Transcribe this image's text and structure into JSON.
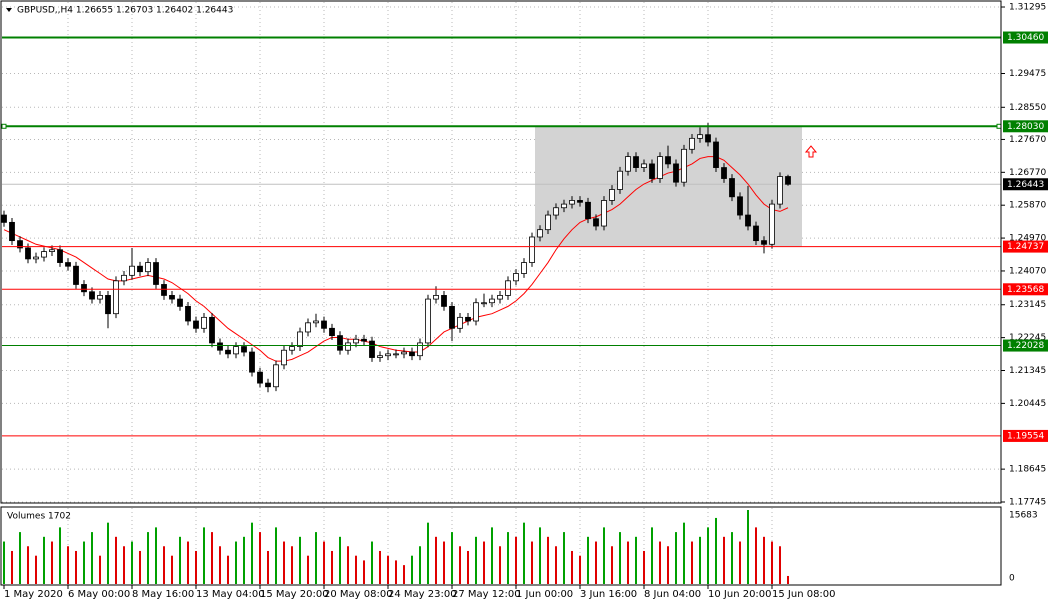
{
  "chart_data": {
    "type": "candlestick",
    "title": "GBPUSD,,H4  1.26655 1.26703 1.26402 1.26443",
    "ylim": [
      1.17718,
      1.31487
    ],
    "yticks": [
      1.31295,
      1.29475,
      {
        "value": 1.2855,
        "label": "1.28550"
      },
      {
        "value": 1.2767,
        "label": "1.27670"
      },
      {
        "value": 1.2677,
        "label": "1.26770"
      },
      {
        "value": 1.2587,
        "label": "1.25870"
      },
      {
        "value": 1.2497,
        "label": "1.24970"
      },
      {
        "value": 1.2407,
        "label": "1.24070"
      },
      1.23145,
      1.22245,
      1.21345,
      1.20445,
      1.18645,
      1.17745
    ],
    "current": 1.26443,
    "zone": {
      "high": 1.2803,
      "low": 1.24737
    },
    "levels": [
      {
        "value": 1.3046,
        "label": "1.30460",
        "color": "#008000"
      },
      {
        "value": 1.2803,
        "label": "1.28030",
        "color": "#008000"
      },
      {
        "value": 1.24737,
        "label": "1.24737",
        "color": "#ff0000"
      },
      {
        "value": 1.23568,
        "label": "1.23568",
        "color": "#ff0000"
      },
      {
        "value": 1.22028,
        "label": "1.22028",
        "color": "#008000"
      },
      {
        "value": 1.19554,
        "label": "1.19554",
        "color": "#ff0000"
      }
    ],
    "x_labels": [
      "1 May 2020",
      "6 May 00:00",
      "8 May 16:00",
      "13 May 04:00",
      "15 May 20:00",
      "20 May 08:00",
      "24 May 23:00",
      "27 May 12:00",
      "1 Jun 00:00",
      "3 Jun 16:00",
      "8 Jun 04:00",
      "10 Jun 20:00",
      "15 Jun 08:00"
    ],
    "open": [
      1.256,
      1.254,
      1.249,
      1.247,
      1.244,
      1.2445,
      1.246,
      1.2465,
      1.243,
      1.242,
      1.237,
      1.235,
      1.233,
      1.234,
      1.229,
      1.238,
      1.2395,
      1.242,
      1.2405,
      1.243,
      1.237,
      1.234,
      1.233,
      1.231,
      1.227,
      1.225,
      1.228,
      1.221,
      1.219,
      1.218,
      1.22,
      1.2185,
      1.213,
      1.21,
      1.209,
      1.215,
      1.219,
      1.22,
      1.224,
      1.2265,
      1.227,
      1.225,
      1.223,
      1.219,
      1.221,
      1.222,
      1.2215,
      1.217,
      1.2175,
      1.218,
      1.218,
      1.2185,
      1.2175,
      1.221,
      1.233,
      1.234,
      1.231,
      1.225,
      1.228,
      1.227,
      1.232,
      1.232,
      1.233,
      1.234,
      1.238,
      1.24,
      1.243,
      1.25,
      1.252,
      1.256,
      1.258,
      1.259,
      1.26,
      1.2595,
      1.255,
      1.253,
      1.26,
      1.263,
      1.268,
      1.272,
      1.269,
      1.27,
      1.266,
      1.272,
      1.27,
      1.265,
      1.274,
      1.277,
      1.278,
      1.276,
      1.269,
      1.266,
      1.261,
      1.256,
      1.253,
      1.249,
      1.248,
      1.259,
      1.26655
    ],
    "high": [
      1.2572,
      1.2552,
      1.2502,
      1.2482,
      1.2457,
      1.2472,
      1.2477,
      1.2477,
      1.2442,
      1.2432,
      1.2382,
      1.2362,
      1.2352,
      1.2352,
      1.2392,
      1.2407,
      1.247,
      1.2432,
      1.2442,
      1.2442,
      1.2382,
      1.2352,
      1.2342,
      1.2322,
      1.2282,
      1.2292,
      1.2292,
      1.2222,
      1.2202,
      1.2212,
      1.2212,
      1.2197,
      1.2142,
      1.2112,
      1.2162,
      1.2202,
      1.2212,
      1.2252,
      1.2277,
      1.229,
      1.2282,
      1.2262,
      1.2242,
      1.2222,
      1.2232,
      1.2232,
      1.2227,
      1.2187,
      1.2192,
      1.2192,
      1.2197,
      1.2197,
      1.2222,
      1.2342,
      1.2365,
      1.2352,
      1.2322,
      1.2292,
      1.2292,
      1.2332,
      1.2345,
      1.2342,
      1.2352,
      1.2392,
      1.2412,
      1.2442,
      1.2512,
      1.2532,
      1.2572,
      1.2592,
      1.2602,
      1.2612,
      1.2612,
      1.2607,
      1.2562,
      1.2612,
      1.2642,
      1.2692,
      1.2732,
      1.2732,
      1.2712,
      1.2712,
      1.2732,
      1.275,
      1.2712,
      1.2752,
      1.2782,
      1.28,
      1.2812,
      1.2772,
      1.2702,
      1.2672,
      1.2622,
      1.264,
      1.2542,
      1.2502,
      1.2602,
      1.2677,
      1.26703
    ],
    "low": [
      1.2528,
      1.2478,
      1.2458,
      1.2428,
      1.2428,
      1.2433,
      1.2448,
      1.2418,
      1.2408,
      1.2358,
      1.2338,
      1.2318,
      1.2318,
      1.225,
      1.2278,
      1.2368,
      1.2383,
      1.2393,
      1.2393,
      1.2358,
      1.2328,
      1.2318,
      1.2298,
      1.2258,
      1.2238,
      1.2238,
      1.2198,
      1.2178,
      1.2168,
      1.2168,
      1.2173,
      1.2118,
      1.2088,
      1.2075,
      1.2078,
      1.2138,
      1.2178,
      1.2188,
      1.2228,
      1.2253,
      1.2238,
      1.2218,
      1.2178,
      1.2178,
      1.2198,
      1.2203,
      1.2158,
      1.2158,
      1.2163,
      1.2168,
      1.2168,
      1.2163,
      1.2163,
      1.2198,
      1.2318,
      1.2298,
      1.2215,
      1.2238,
      1.2258,
      1.2258,
      1.2308,
      1.2308,
      1.2318,
      1.2328,
      1.2368,
      1.2388,
      1.2418,
      1.2488,
      1.2508,
      1.2548,
      1.2568,
      1.2578,
      1.2583,
      1.2538,
      1.2518,
      1.2518,
      1.2588,
      1.2618,
      1.2668,
      1.2678,
      1.2678,
      1.2648,
      1.2648,
      1.2688,
      1.2638,
      1.2638,
      1.2728,
      1.2758,
      1.2748,
      1.2678,
      1.2648,
      1.2598,
      1.2548,
      1.2518,
      1.2478,
      1.2455,
      1.2468,
      1.2578,
      1.26402
    ],
    "close": [
      1.254,
      1.249,
      1.247,
      1.244,
      1.2445,
      1.246,
      1.2465,
      1.243,
      1.242,
      1.237,
      1.235,
      1.233,
      1.234,
      1.229,
      1.238,
      1.2395,
      1.242,
      1.2405,
      1.243,
      1.237,
      1.234,
      1.233,
      1.231,
      1.227,
      1.225,
      1.228,
      1.221,
      1.219,
      1.218,
      1.22,
      1.2185,
      1.213,
      1.21,
      1.209,
      1.215,
      1.219,
      1.22,
      1.224,
      1.2265,
      1.227,
      1.225,
      1.223,
      1.219,
      1.221,
      1.222,
      1.2215,
      1.217,
      1.2175,
      1.218,
      1.218,
      1.2185,
      1.2175,
      1.221,
      1.233,
      1.234,
      1.231,
      1.225,
      1.228,
      1.227,
      1.232,
      1.232,
      1.233,
      1.234,
      1.238,
      1.24,
      1.243,
      1.25,
      1.252,
      1.256,
      1.258,
      1.259,
      1.26,
      1.2595,
      1.255,
      1.253,
      1.26,
      1.263,
      1.268,
      1.272,
      1.269,
      1.27,
      1.266,
      1.272,
      1.27,
      1.265,
      1.274,
      1.277,
      1.278,
      1.276,
      1.269,
      1.266,
      1.261,
      1.256,
      1.253,
      1.249,
      1.248,
      1.259,
      1.26655,
      1.26443
    ],
    "ma": {
      "color": "#ff0000",
      "values": [
        1.252,
        1.251,
        1.25,
        1.249,
        1.248,
        1.2475,
        1.247,
        1.2465,
        1.2455,
        1.2445,
        1.243,
        1.2415,
        1.24,
        1.2385,
        1.238,
        1.238,
        1.2385,
        1.239,
        1.2395,
        1.239,
        1.2385,
        1.2375,
        1.236,
        1.2345,
        1.2325,
        1.231,
        1.229,
        1.227,
        1.225,
        1.2235,
        1.222,
        1.2205,
        1.219,
        1.217,
        1.216,
        1.216,
        1.2165,
        1.2175,
        1.2185,
        1.22,
        1.2215,
        1.2225,
        1.2225,
        1.222,
        1.222,
        1.2215,
        1.221,
        1.22,
        1.2195,
        1.219,
        1.2188,
        1.2185,
        1.2185,
        1.22,
        1.222,
        1.224,
        1.225,
        1.226,
        1.227,
        1.228,
        1.2285,
        1.229,
        1.23,
        1.231,
        1.2325,
        1.2345,
        1.237,
        1.24,
        1.243,
        1.2465,
        1.2495,
        1.252,
        1.254,
        1.255,
        1.2555,
        1.2565,
        1.2575,
        1.259,
        1.261,
        1.263,
        1.2645,
        1.2655,
        1.2665,
        1.2675,
        1.268,
        1.269,
        1.27,
        1.2715,
        1.272,
        1.272,
        1.271,
        1.269,
        1.267,
        1.2645,
        1.2615,
        1.259,
        1.2575,
        1.257,
        1.258
      ]
    },
    "volume_title": "Volumes 1702",
    "volume_lim": [
      0,
      15683
    ],
    "volume_ticks": [
      15683,
      0
    ],
    "volumes": [
      9000,
      7000,
      11000,
      8000,
      6000,
      10000,
      9000,
      12000,
      8000,
      7000,
      9000,
      11000,
      6000,
      13000,
      10000,
      8000,
      9000,
      7000,
      11000,
      12000,
      8000,
      6000,
      10000,
      9000,
      7000,
      12000,
      11000,
      8000,
      6000,
      9000,
      10000,
      13000,
      11000,
      7000,
      12000,
      9000,
      8000,
      10000,
      6000,
      11000,
      9000,
      7000,
      10000,
      8000,
      6000,
      5000,
      9000,
      7000,
      6000,
      5000,
      4000,
      6000,
      8000,
      13000,
      10000,
      9000,
      11000,
      8000,
      7000,
      10000,
      9000,
      12000,
      8000,
      11000,
      10000,
      13000,
      9000,
      12000,
      10000,
      8000,
      11000,
      7000,
      6000,
      10000,
      9000,
      12000,
      8000,
      11000,
      9000,
      10000,
      7000,
      12000,
      9000,
      8000,
      11000,
      13000,
      9000,
      10000,
      12000,
      14000,
      10000,
      11000,
      9000,
      15683,
      12000,
      10000,
      9000,
      8000,
      1702
    ]
  }
}
